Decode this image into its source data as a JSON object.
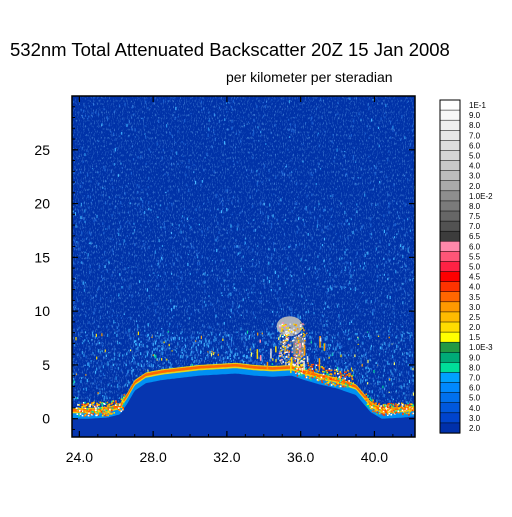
{
  "chart_data": {
    "type": "heatmap",
    "title": "532nm Total Attenuated Backscatter 20Z 15 Jan 2008",
    "subtitle": "per kilometer per steradian",
    "xlim": [
      23.6,
      42.2
    ],
    "ylim": [
      -1.7,
      30
    ],
    "x_ticks": [
      {
        "value": 24,
        "label": "24.0"
      },
      {
        "value": 28,
        "label": "28.0"
      },
      {
        "value": 32,
        "label": "32.0"
      },
      {
        "value": 36,
        "label": "36.0"
      },
      {
        "value": 40,
        "label": "40.0"
      }
    ],
    "y_ticks": [
      {
        "value": 0,
        "label": "0"
      },
      {
        "value": 5,
        "label": "5"
      },
      {
        "value": 10,
        "label": "10"
      },
      {
        "value": 15,
        "label": "15"
      },
      {
        "value": 20,
        "label": "20"
      },
      {
        "value": 25,
        "label": "25"
      }
    ],
    "surface_height": [
      {
        "x": 23.7,
        "y": 0.6
      },
      {
        "x": 24.5,
        "y": 0.6
      },
      {
        "x": 25.5,
        "y": 0.7
      },
      {
        "x": 26.2,
        "y": 1.0
      },
      {
        "x": 26.6,
        "y": 2.0
      },
      {
        "x": 27.0,
        "y": 3.2
      },
      {
        "x": 27.6,
        "y": 3.9
      },
      {
        "x": 28.5,
        "y": 4.2
      },
      {
        "x": 29.5,
        "y": 4.4
      },
      {
        "x": 30.5,
        "y": 4.6
      },
      {
        "x": 31.5,
        "y": 4.7
      },
      {
        "x": 32.5,
        "y": 4.8
      },
      {
        "x": 33.5,
        "y": 4.6
      },
      {
        "x": 34.5,
        "y": 4.5
      },
      {
        "x": 35.5,
        "y": 4.6
      },
      {
        "x": 36.2,
        "y": 4.2
      },
      {
        "x": 37.0,
        "y": 3.8
      },
      {
        "x": 38.0,
        "y": 3.4
      },
      {
        "x": 39.0,
        "y": 2.8
      },
      {
        "x": 39.8,
        "y": 1.2
      },
      {
        "x": 40.4,
        "y": 0.6
      },
      {
        "x": 41.5,
        "y": 0.7
      },
      {
        "x": 42.1,
        "y": 0.8
      }
    ],
    "cloud": {
      "x_range": [
        34.8,
        36.2
      ],
      "y_range": [
        5.0,
        9.0
      ]
    },
    "colorbar": {
      "levels": [
        {
          "label": "1E-1",
          "color": "#ffffff"
        },
        {
          "label": "9.0",
          "color": "#f7f7f7"
        },
        {
          "label": "8.0",
          "color": "#efefef"
        },
        {
          "label": "7.0",
          "color": "#e6e6e6"
        },
        {
          "label": "6.0",
          "color": "#dddddd"
        },
        {
          "label": "5.0",
          "color": "#d4d4d4"
        },
        {
          "label": "4.0",
          "color": "#c8c8c8"
        },
        {
          "label": "3.0",
          "color": "#bcbcbc"
        },
        {
          "label": "2.0",
          "color": "#aaaaaa"
        },
        {
          "label": "1.0E-2",
          "color": "#8e8e8e"
        },
        {
          "label": "8.0",
          "color": "#7a7a7a"
        },
        {
          "label": "7.5",
          "color": "#666666"
        },
        {
          "label": "7.0",
          "color": "#525252"
        },
        {
          "label": "6.5",
          "color": "#3c3c3c"
        },
        {
          "label": "6.0",
          "color": "#ff88aa"
        },
        {
          "label": "5.5",
          "color": "#ff5577"
        },
        {
          "label": "5.0",
          "color": "#ff2244"
        },
        {
          "label": "4.5",
          "color": "#ff0000"
        },
        {
          "label": "4.0",
          "color": "#ff3300"
        },
        {
          "label": "3.5",
          "color": "#ff6600"
        },
        {
          "label": "3.0",
          "color": "#ff9900"
        },
        {
          "label": "2.5",
          "color": "#ffbb00"
        },
        {
          "label": "2.0",
          "color": "#ffdd00"
        },
        {
          "label": "1.5",
          "color": "#ffff00"
        },
        {
          "label": "1.0E-3",
          "color": "#229944"
        },
        {
          "label": "9.0",
          "color": "#00aa77"
        },
        {
          "label": "8.0",
          "color": "#00dd99"
        },
        {
          "label": "7.0",
          "color": "#00a0ff"
        },
        {
          "label": "6.0",
          "color": "#0088ff"
        },
        {
          "label": "5.0",
          "color": "#0070ee"
        },
        {
          "label": "4.0",
          "color": "#0058dd"
        },
        {
          "label": "3.0",
          "color": "#0044cc"
        },
        {
          "label": "2.0",
          "color": "#0030aa"
        }
      ]
    },
    "colors": {
      "background": "#0032a8",
      "noise_dim": "#1a5fd0",
      "noise_mid": "#2a8fe8",
      "noise_bright": "#3ab0ff"
    }
  }
}
